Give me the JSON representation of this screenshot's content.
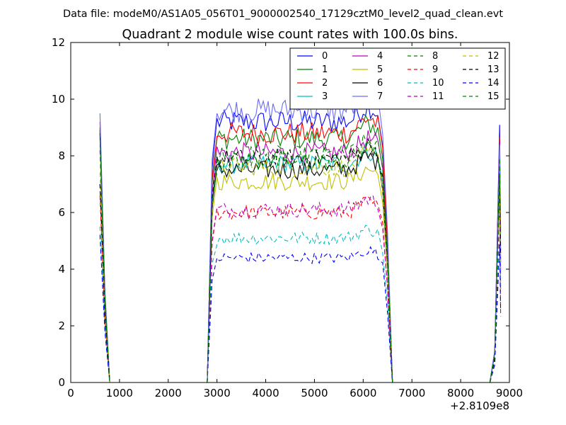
{
  "figure": {
    "suptitle": "Data file: modeM0/AS1A05_056T01_9000002540_17129cztM0_level2_quad_clean.evt"
  },
  "chart_data": {
    "type": "line",
    "title": "Quadrant 2 module wise count rates with 100.0s bins.",
    "xlabel": "",
    "ylabel": "",
    "x_offset_label": "+2.8109e8",
    "xlim": [
      0,
      9000
    ],
    "ylim": [
      0,
      12
    ],
    "xticks": [
      0,
      1000,
      2000,
      3000,
      4000,
      5000,
      6000,
      7000,
      8000,
      9000
    ],
    "yticks": [
      0,
      2,
      4,
      6,
      8,
      10,
      12
    ],
    "grid": false,
    "legend_position": "top-right",
    "legend_columns": 4,
    "segments": [
      {
        "start": 600,
        "end": 800
      },
      {
        "start": 2800,
        "end": 6600
      },
      {
        "start": 8600,
        "end": 8820
      }
    ],
    "segment_shape": {
      "segment1": [
        [
          600,
          1.0
        ],
        [
          700,
          0.35
        ],
        [
          800,
          0.0
        ]
      ],
      "segment2_edges": [
        [
          2800,
          0.0
        ],
        [
          2900,
          0.85
        ],
        [
          6400,
          0.9
        ],
        [
          6500,
          0.5
        ],
        [
          6600,
          0.0
        ]
      ],
      "segment3": [
        [
          8600,
          0.0
        ],
        [
          8700,
          0.12
        ],
        [
          8800,
          1.0
        ],
        [
          8820,
          0.5
        ]
      ]
    },
    "series": [
      {
        "name": "0",
        "color": "#0000ff",
        "dash": "solid",
        "spike": 9.0,
        "plateau": 9.2
      },
      {
        "name": "1",
        "color": "#008000",
        "dash": "solid",
        "spike": 8.9,
        "plateau": 8.6
      },
      {
        "name": "2",
        "color": "#ff0000",
        "dash": "solid",
        "spike": 8.9,
        "plateau": 8.8
      },
      {
        "name": "3",
        "color": "#00bfbf",
        "dash": "solid",
        "spike": 8.7,
        "plateau": 7.7
      },
      {
        "name": "4",
        "color": "#bf00bf",
        "dash": "solid",
        "spike": 9.2,
        "plateau": 8.1
      },
      {
        "name": "5",
        "color": "#bfbf00",
        "dash": "solid",
        "spike": 8.6,
        "plateau": 7.1
      },
      {
        "name": "6",
        "color": "#000000",
        "dash": "solid",
        "spike": 8.8,
        "plateau": 7.5
      },
      {
        "name": "7",
        "color": "#6a6aff",
        "dash": "solid",
        "spike": 9.5,
        "plateau": 9.6
      },
      {
        "name": "8",
        "color": "#008000",
        "dash": "dashed",
        "spike": 8.8,
        "plateau": 8.0
      },
      {
        "name": "9",
        "color": "#ff0000",
        "dash": "dashed",
        "spike": 6.6,
        "plateau": 6.0
      },
      {
        "name": "10",
        "color": "#00bfbf",
        "dash": "dashed",
        "spike": 5.5,
        "plateau": 5.1
      },
      {
        "name": "11",
        "color": "#bf00bf",
        "dash": "dashed",
        "spike": 7.0,
        "plateau": 6.1
      },
      {
        "name": "12",
        "color": "#bfbf00",
        "dash": "dashed",
        "spike": 7.4,
        "plateau": 7.6
      },
      {
        "name": "13",
        "color": "#000000",
        "dash": "dashed",
        "spike": 7.0,
        "plateau": 7.9
      },
      {
        "name": "14",
        "color": "#0000ff",
        "dash": "dashed",
        "spike": 5.2,
        "plateau": 4.4
      },
      {
        "name": "15",
        "color": "#008000",
        "dash": "dashed",
        "spike": 8.2,
        "plateau": 7.8
      }
    ]
  }
}
